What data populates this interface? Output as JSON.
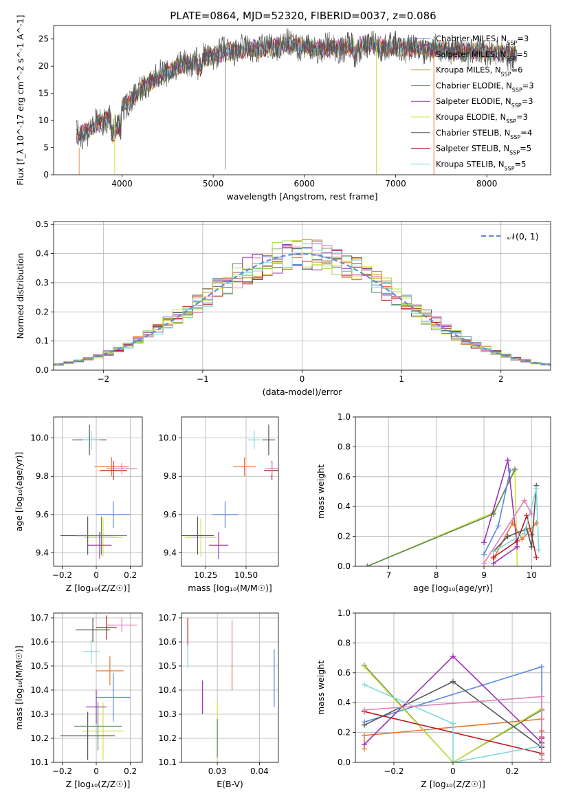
{
  "figure_title": "PLATE=0864, MJD=52320, FIBERID=0037, z=0.086",
  "colors": {
    "Chabrier MILES": "#5b87d9",
    "Salpeter MILES": "#e6772e",
    "Kroupa MILES": "#c08a2a",
    "Chabrier ELODIE": "#5a8a5a",
    "Salpeter ELODIE": "#9b30b8",
    "Kroupa ELODIE": "#d4e040",
    "Chabrier STELIB": "#555555",
    "Salpeter STELIB": "#b81c1c",
    "Kroupa STELIB": "#7fd8dc",
    "pink": "#e27fb8",
    "lime": "#a8d84a",
    "normal": "#5b8fd6"
  },
  "chart_data": [
    {
      "type": "line",
      "title": "PLATE=0864, MJD=52320, FIBERID=0037, z=0.086",
      "xlabel": "wavelength [Angstrom, rest frame]",
      "ylabel": "Flux [f_λ 10^-17 erg cm^-2 s^-1 A^-1]",
      "xlim": [
        3250,
        8700
      ],
      "ylim": [
        0,
        27.5
      ],
      "xticks": [
        4000,
        5000,
        6000,
        7000,
        8000
      ],
      "yticks": [
        0,
        5,
        10,
        15,
        20,
        25
      ],
      "legend_position": "right",
      "continuum_x": [
        3500,
        3700,
        3900,
        4100,
        4300,
        4500,
        4700,
        4900,
        5100,
        5300,
        5500,
        5700,
        5900,
        6100,
        6300,
        6500,
        6700,
        6900,
        7100,
        7300,
        7500,
        7700,
        7900,
        8100,
        8300
      ],
      "continuum_y": [
        7,
        9,
        11,
        14,
        17,
        19,
        20.5,
        21.5,
        22.5,
        23,
        23.2,
        23.6,
        24,
        23.2,
        23.4,
        23.5,
        23.8,
        23.6,
        23.4,
        23.2,
        23.0,
        22.8,
        22.6,
        22.4,
        22.2
      ],
      "series": [
        {
          "name": "Chabrier MILES",
          "label_html": "Chabrier MILES, N<tspan baseline-shift='sub' font-size='8'>SSP</tspan>=3"
        },
        {
          "name": "Salpeter MILES",
          "label_html": "Salpeter MILES, N<tspan baseline-shift='sub' font-size='8'>SSP</tspan>=5"
        },
        {
          "name": "Kroupa MILES",
          "label_html": "Kroupa MILES, N<tspan baseline-shift='sub' font-size='8'>SSP</tspan>=6"
        },
        {
          "name": "Chabrier ELODIE",
          "label_html": "Chabrier ELODIE, N<tspan baseline-shift='sub' font-size='8'>SSP</tspan>=3"
        },
        {
          "name": "Salpeter ELODIE",
          "label_html": "Salpeter ELODIE, N<tspan baseline-shift='sub' font-size='8'>SSP</tspan>=3"
        },
        {
          "name": "Kroupa ELODIE",
          "label_html": "Kroupa ELODIE, N<tspan baseline-shift='sub' font-size='8'>SSP</tspan>=3"
        },
        {
          "name": "Chabrier STELIB",
          "label_html": "Chabrier STELIB, N<tspan baseline-shift='sub' font-size='8'>SSP</tspan>=4"
        },
        {
          "name": "Salpeter STELIB",
          "label_html": "Salpeter STELIB, N<tspan baseline-shift='sub' font-size='8'>SSP</tspan>=5"
        },
        {
          "name": "Kroupa STELIB",
          "label_html": "Kroupa STELIB, N<tspan baseline-shift='sub' font-size='8'>SSP</tspan>=5"
        }
      ],
      "dips": [
        {
          "x": 3920,
          "color": "Kroupa ELODIE"
        },
        {
          "x": 6790,
          "color": "Kroupa ELODIE"
        },
        {
          "x": 7420,
          "color": "Salpeter MILES"
        }
      ]
    },
    {
      "type": "histogram",
      "xlabel": "(data-model)/error",
      "ylabel": "Normed distribution",
      "xlim": [
        -2.5,
        2.5
      ],
      "ylim": [
        0,
        0.51
      ],
      "xticks": [
        -2,
        -1,
        0,
        1,
        2
      ],
      "yticks": [
        0.0,
        0.1,
        0.2,
        0.3,
        0.4,
        0.5
      ],
      "legend_label": "𝒩(0, 1)",
      "legend_position": "top-right",
      "bin_width": 0.1,
      "normal": {
        "mean": 0,
        "std": 1
      }
    },
    {
      "type": "errorbar",
      "xlabel": "Z [log₁₀(Z/Z☉)]",
      "ylabel": "age  [log₁₀(age/yr)]",
      "xlim": [
        -0.25,
        0.27
      ],
      "ylim": [
        9.33,
        10.11
      ],
      "xticks": [
        -0.2,
        0.0,
        0.2
      ],
      "yticks": [
        9.4,
        9.6,
        9.8,
        10.0
      ],
      "points": [
        {
          "color": "Chabrier MILES",
          "x": 0.1,
          "y": 9.6,
          "xerr": 0.1,
          "yerr": 0.07
        },
        {
          "color": "Salpeter MILES",
          "x": 0.09,
          "y": 9.85,
          "xerr": 0.1,
          "yerr": 0.05
        },
        {
          "color": "Chabrier STELIB",
          "x": -0.04,
          "y": 9.99,
          "xerr": 0.1,
          "yerr": 0.08
        },
        {
          "color": "Kroupa STELIB",
          "x": -0.03,
          "y": 9.99,
          "xerr": 0.05,
          "yerr": 0.05
        },
        {
          "color": "Salpeter STELIB",
          "x": 0.1,
          "y": 9.83,
          "xerr": 0.08,
          "yerr": 0.05
        },
        {
          "color": "pink",
          "x": 0.15,
          "y": 9.84,
          "xerr": 0.09,
          "yerr": 0.03
        },
        {
          "color": "Kroupa ELODIE",
          "x": 0.04,
          "y": 9.48,
          "xerr": 0.11,
          "yerr": 0.1
        },
        {
          "color": "Chabrier STELIB",
          "x": -0.05,
          "y": 9.49,
          "xerr": 0.16,
          "yerr": 0.1
        },
        {
          "color": "Salpeter ELODIE",
          "x": 0.02,
          "y": 9.44,
          "xerr": 0.07,
          "yerr": 0.07
        },
        {
          "color": "Chabrier ELODIE",
          "x": 0.03,
          "y": 9.49,
          "xerr": 0.15,
          "yerr": 0.1
        }
      ]
    },
    {
      "type": "errorbar",
      "xlabel": "mass [log₁₀(M/M☉)]",
      "ylabel": "",
      "xlim": [
        10.1,
        10.7
      ],
      "ylim": [
        9.33,
        10.11
      ],
      "xticks": [
        10.25,
        10.5
      ],
      "xtick_labels": [
        "10.25",
        "10.50"
      ],
      "yticks": [
        9.4,
        9.6,
        9.8,
        10.0
      ],
      "points": [
        {
          "color": "Chabrier MILES",
          "x": 10.37,
          "y": 9.6,
          "xerr": 0.08,
          "yerr": 0.07
        },
        {
          "color": "Salpeter MILES",
          "x": 10.49,
          "y": 9.85,
          "xerr": 0.07,
          "yerr": 0.05
        },
        {
          "color": "Chabrier STELIB",
          "x": 10.64,
          "y": 9.99,
          "xerr": 0.04,
          "yerr": 0.08
        },
        {
          "color": "Kroupa STELIB",
          "x": 10.55,
          "y": 9.99,
          "xerr": 0.04,
          "yerr": 0.05
        },
        {
          "color": "Salpeter STELIB",
          "x": 10.66,
          "y": 9.83,
          "xerr": 0.05,
          "yerr": 0.05
        },
        {
          "color": "pink",
          "x": 10.66,
          "y": 9.84,
          "xerr": 0.04,
          "yerr": 0.03
        },
        {
          "color": "Kroupa ELODIE",
          "x": 10.22,
          "y": 9.48,
          "xerr": 0.1,
          "yerr": 0.1
        },
        {
          "color": "Chabrier STELIB",
          "x": 10.2,
          "y": 9.49,
          "xerr": 0.1,
          "yerr": 0.1
        },
        {
          "color": "Salpeter ELODIE",
          "x": 10.33,
          "y": 9.44,
          "xerr": 0.06,
          "yerr": 0.07
        }
      ]
    },
    {
      "type": "line",
      "xlabel": "age  [log₁₀(age/yr)]",
      "ylabel": "mass weight",
      "xlim": [
        6.3,
        10.4
      ],
      "ylim": [
        0,
        1.0
      ],
      "xticks": [
        7,
        8,
        9,
        10
      ],
      "yticks": [
        0.0,
        0.2,
        0.4,
        0.6,
        0.8,
        1.0
      ],
      "series": [
        {
          "color": "Kroupa ELODIE",
          "x": [
            6.55,
            9.2,
            9.65,
            9.7
          ],
          "y": [
            0.0,
            0.36,
            0.64,
            0.0
          ]
        },
        {
          "color": "Chabrier ELODIE",
          "x": [
            6.55,
            9.2,
            9.65
          ],
          "y": [
            0.0,
            0.35,
            0.65
          ]
        },
        {
          "color": "Salpeter ELODIE",
          "x": [
            9.0,
            9.5,
            9.7,
            9.2
          ],
          "y": [
            0.16,
            0.71,
            0.13,
            0.02
          ]
        },
        {
          "color": "Chabrier MILES",
          "x": [
            9.0,
            9.3,
            9.55
          ],
          "y": [
            0.08,
            0.27,
            0.64
          ]
        },
        {
          "color": "Salpeter MILES",
          "x": [
            9.2,
            9.6,
            9.8,
            10.1
          ],
          "y": [
            0.05,
            0.29,
            0.18,
            0.29
          ]
        },
        {
          "color": "Salpeter STELIB",
          "x": [
            9.2,
            9.7,
            9.9,
            10.0,
            10.1
          ],
          "y": [
            0.06,
            0.17,
            0.34,
            0.21,
            0.06
          ]
        },
        {
          "color": "Chabrier STELIB",
          "x": [
            9.2,
            9.5,
            9.9,
            10.0,
            10.1
          ],
          "y": [
            0.1,
            0.2,
            0.25,
            0.13,
            0.54
          ]
        },
        {
          "color": "Kroupa STELIB",
          "x": [
            9.2,
            9.85,
            10.1,
            10.15
          ],
          "y": [
            0.1,
            0.22,
            0.52,
            0.11
          ]
        },
        {
          "color": "pink",
          "x": [
            9.0,
            9.85,
            10.0
          ],
          "y": [
            0.02,
            0.44,
            0.35
          ]
        }
      ]
    },
    {
      "type": "errorbar",
      "xlabel": "Z [log₁₀(Z/Z☉)]",
      "ylabel": "mass [log₁₀(M/M☉)]",
      "xlim": [
        -0.25,
        0.27
      ],
      "ylim": [
        10.1,
        10.72
      ],
      "xticks": [
        -0.2,
        0.0,
        0.2
      ],
      "yticks": [
        10.1,
        10.2,
        10.3,
        10.4,
        10.5,
        10.6,
        10.7
      ],
      "points": [
        {
          "color": "Chabrier MILES",
          "x": 0.1,
          "y": 10.37,
          "xerr": 0.1,
          "yerr": 0.1
        },
        {
          "color": "Salpeter MILES",
          "x": 0.08,
          "y": 10.48,
          "xerr": 0.08,
          "yerr": 0.06
        },
        {
          "color": "Chabrier STELIB",
          "x": -0.02,
          "y": 10.65,
          "xerr": 0.1,
          "yerr": 0.05
        },
        {
          "color": "Kroupa STELIB",
          "x": -0.03,
          "y": 10.56,
          "xerr": 0.05,
          "yerr": 0.05
        },
        {
          "color": "Salpeter STELIB",
          "x": 0.06,
          "y": 10.66,
          "xerr": 0.06,
          "yerr": 0.05
        },
        {
          "color": "pink",
          "x": 0.15,
          "y": 10.67,
          "xerr": 0.09,
          "yerr": 0.03
        },
        {
          "color": "Kroupa ELODIE",
          "x": 0.04,
          "y": 10.23,
          "xerr": 0.12,
          "yerr": 0.12
        },
        {
          "color": "Chabrier STELIB",
          "x": -0.05,
          "y": 10.21,
          "xerr": 0.16,
          "yerr": 0.1
        },
        {
          "color": "Salpeter ELODIE",
          "x": 0.0,
          "y": 10.33,
          "xerr": 0.06,
          "yerr": 0.07
        },
        {
          "color": "Chabrier ELODIE",
          "x": 0.01,
          "y": 10.25,
          "xerr": 0.14,
          "yerr": 0.1
        }
      ]
    },
    {
      "type": "errorbar",
      "xlabel": "E(B-V)",
      "ylabel": "",
      "xlim": [
        0.0215,
        0.0445
      ],
      "ylim": [
        10.1,
        10.72
      ],
      "xticks": [
        0.03,
        0.04
      ],
      "yticks": [
        10.1,
        10.2,
        10.3,
        10.4,
        10.5,
        10.6,
        10.7
      ],
      "points": [
        {
          "color": "Chabrier MILES",
          "x": 0.0435,
          "y": 10.45,
          "xerr": 0.0,
          "yerr": 0.12
        },
        {
          "color": "Salpeter MILES",
          "x": 0.0335,
          "y": 10.49,
          "xerr": 0.0,
          "yerr": 0.09
        },
        {
          "color": "pink",
          "x": 0.0335,
          "y": 10.6,
          "xerr": 0.0,
          "yerr": 0.09
        },
        {
          "color": "Salpeter STELIB",
          "x": 0.023,
          "y": 10.64,
          "xerr": 0.0,
          "yerr": 0.06
        },
        {
          "color": "Kroupa STELIB",
          "x": 0.023,
          "y": 10.54,
          "xerr": 0.0,
          "yerr": 0.05
        },
        {
          "color": "Kroupa ELODIE",
          "x": 0.03,
          "y": 10.23,
          "xerr": 0.0,
          "yerr": 0.12
        },
        {
          "color": "Chabrier ELODIE",
          "x": 0.03,
          "y": 10.2,
          "xerr": 0.0,
          "yerr": 0.08
        },
        {
          "color": "Salpeter ELODIE",
          "x": 0.0265,
          "y": 10.37,
          "xerr": 0.0,
          "yerr": 0.07
        }
      ]
    },
    {
      "type": "line",
      "xlabel": "Z [log₁₀(Z/Z☉)]",
      "ylabel": "mass weight",
      "xlim": [
        -0.33,
        0.33
      ],
      "ylim": [
        0,
        1.0
      ],
      "xticks": [
        -0.2,
        0.0,
        0.2
      ],
      "yticks": [
        0.0,
        0.2,
        0.4,
        0.6,
        0.8,
        1.0
      ],
      "series": [
        {
          "color": "Chabrier MILES",
          "x": [
            -0.3,
            0.3,
            0.3
          ],
          "y": [
            0.27,
            0.64,
            0.1
          ]
        },
        {
          "color": "Salpeter MILES",
          "x": [
            -0.3,
            -0.3,
            0.3,
            0.3
          ],
          "y": [
            0.09,
            0.18,
            0.29,
            0.05
          ]
        },
        {
          "color": "Chabrier ELODIE",
          "x": [
            -0.3,
            0.0,
            0.3,
            0.3
          ],
          "y": [
            0.65,
            0.0,
            0.35,
            0.05
          ]
        },
        {
          "color": "Salpeter ELODIE",
          "x": [
            -0.3,
            0.0,
            0.3,
            0.3
          ],
          "y": [
            0.12,
            0.71,
            0.13,
            0.16
          ]
        },
        {
          "color": "Kroupa ELODIE",
          "x": [
            -0.3,
            0.0,
            0.3,
            0.3
          ],
          "y": [
            0.64,
            0.0,
            0.36,
            0.0
          ]
        },
        {
          "color": "Chabrier STELIB",
          "x": [
            -0.3,
            0.0,
            0.3,
            0.3
          ],
          "y": [
            0.25,
            0.54,
            0.1,
            0.13
          ]
        },
        {
          "color": "Salpeter STELIB",
          "x": [
            -0.3,
            0.3,
            0.3,
            0.3
          ],
          "y": [
            0.34,
            0.06,
            0.21,
            0.17
          ]
        },
        {
          "color": "Kroupa STELIB",
          "x": [
            -0.3,
            0.0,
            0.0,
            0.3,
            0.3
          ],
          "y": [
            0.52,
            0.26,
            0.0,
            0.11,
            0.11
          ]
        },
        {
          "color": "pink",
          "x": [
            -0.3,
            0.3,
            0.3
          ],
          "y": [
            0.35,
            0.44,
            0.02
          ]
        }
      ]
    }
  ]
}
